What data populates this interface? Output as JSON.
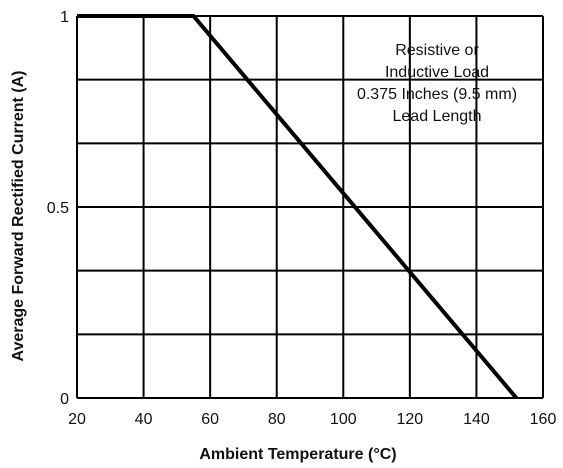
{
  "chart_data": {
    "type": "line",
    "title": "",
    "xlabel": "Ambient Temperature (°C)",
    "ylabel": "Average Forward Rectified Current (A)",
    "xlim": [
      20,
      160
    ],
    "ylim": [
      0,
      1
    ],
    "xticks": [
      20,
      40,
      60,
      80,
      100,
      120,
      140,
      160
    ],
    "xtick_labels": [
      "20",
      "40",
      "60",
      "80",
      "100",
      "120",
      "140",
      "160"
    ],
    "yticks": [
      0,
      0.5,
      1
    ],
    "ytick_labels": [
      "0",
      "0.5",
      "1"
    ],
    "x_gridlines": [
      20,
      40,
      60,
      80,
      100,
      120,
      140,
      160
    ],
    "y_gridlines": [
      0,
      0.1667,
      0.3333,
      0.5,
      0.6667,
      0.8333,
      1
    ],
    "grid": true,
    "series": [
      {
        "x": [
          20,
          55,
          152
        ],
        "y": [
          1,
          1,
          0
        ]
      }
    ],
    "annotation": {
      "lines": [
        "Resistive or",
        "Inductive Load",
        "0.375 Inches (9.5 mm)",
        "Lead Length"
      ]
    },
    "colors": {
      "line": "#000000",
      "grid": "#000000",
      "background": "#ffffff"
    }
  }
}
